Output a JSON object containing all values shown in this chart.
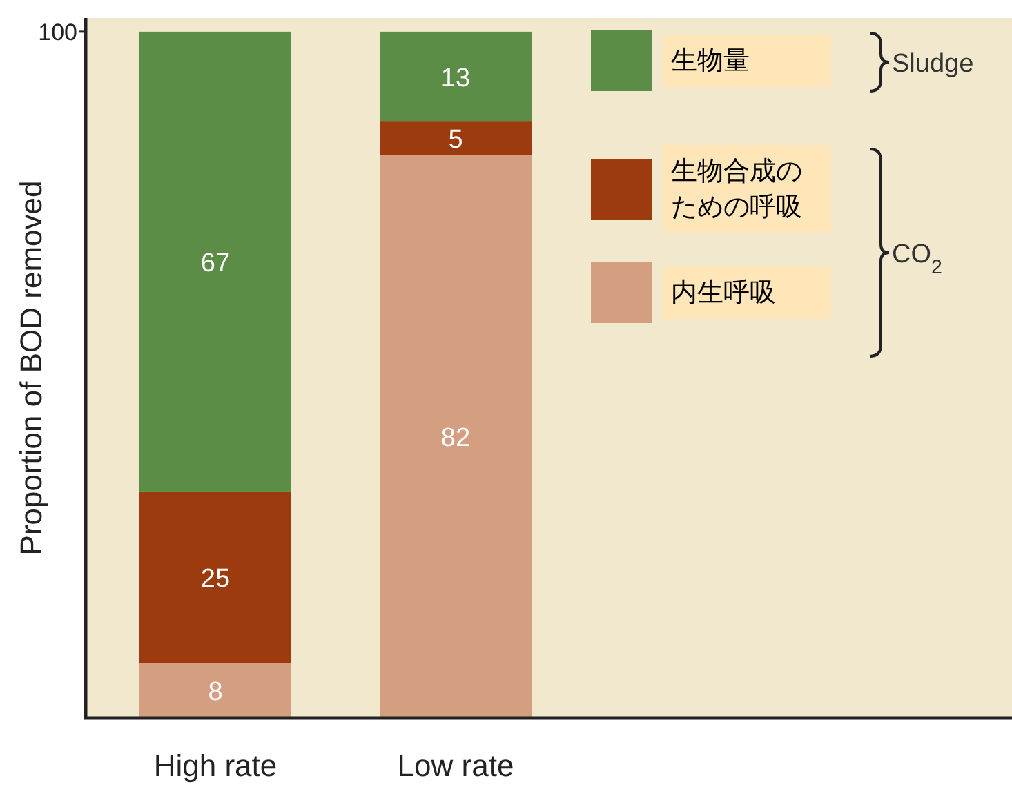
{
  "chart_data": {
    "type": "bar",
    "stacked": true,
    "ylabel": "Proportion of BOD removed",
    "categories": [
      "High rate",
      "Low rate"
    ],
    "series": [
      {
        "name": "内生呼吸",
        "color": "#d49e80",
        "values": [
          8,
          82
        ]
      },
      {
        "name": "生物合成のための呼吸",
        "color": "#9c3b0e",
        "values": [
          25,
          5
        ]
      },
      {
        "name": "生物量",
        "color": "#5b8d47",
        "values": [
          67,
          13
        ]
      }
    ],
    "ylim": [
      0,
      102
    ],
    "yticks": [
      100
    ],
    "data_labels": true,
    "legend": "top right",
    "annotations": [
      "Sludge",
      "CO$_{2}$"
    ]
  }
}
